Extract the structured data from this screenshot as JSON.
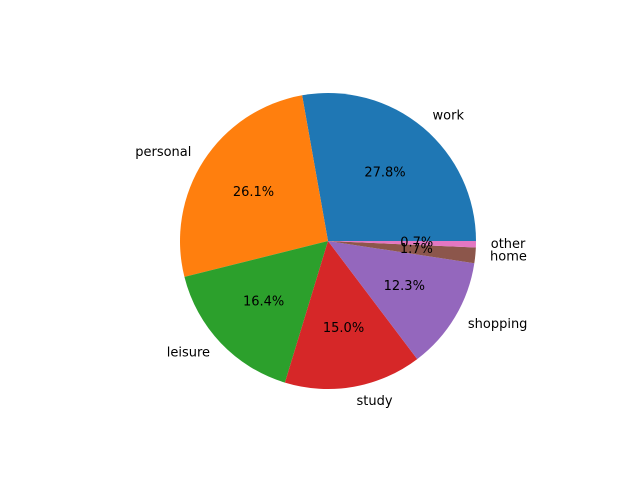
{
  "chart_data": {
    "type": "pie",
    "title": "",
    "start_angle_deg": 0,
    "direction": "counterclockwise",
    "legend": "none",
    "categories": [
      "work",
      "personal",
      "leisure",
      "study",
      "shopping",
      "home",
      "other"
    ],
    "values": [
      27.8,
      26.1,
      16.4,
      15.0,
      12.3,
      1.7,
      0.7
    ],
    "percent_labels": [
      "27.8%",
      "26.1%",
      "16.4%",
      "15.0%",
      "12.3%",
      "1.7%",
      "0.7%"
    ],
    "colors": [
      "#1f77b4",
      "#ff7f0e",
      "#2ca02c",
      "#d62728",
      "#9467bd",
      "#8c564b",
      "#e377c2"
    ]
  }
}
